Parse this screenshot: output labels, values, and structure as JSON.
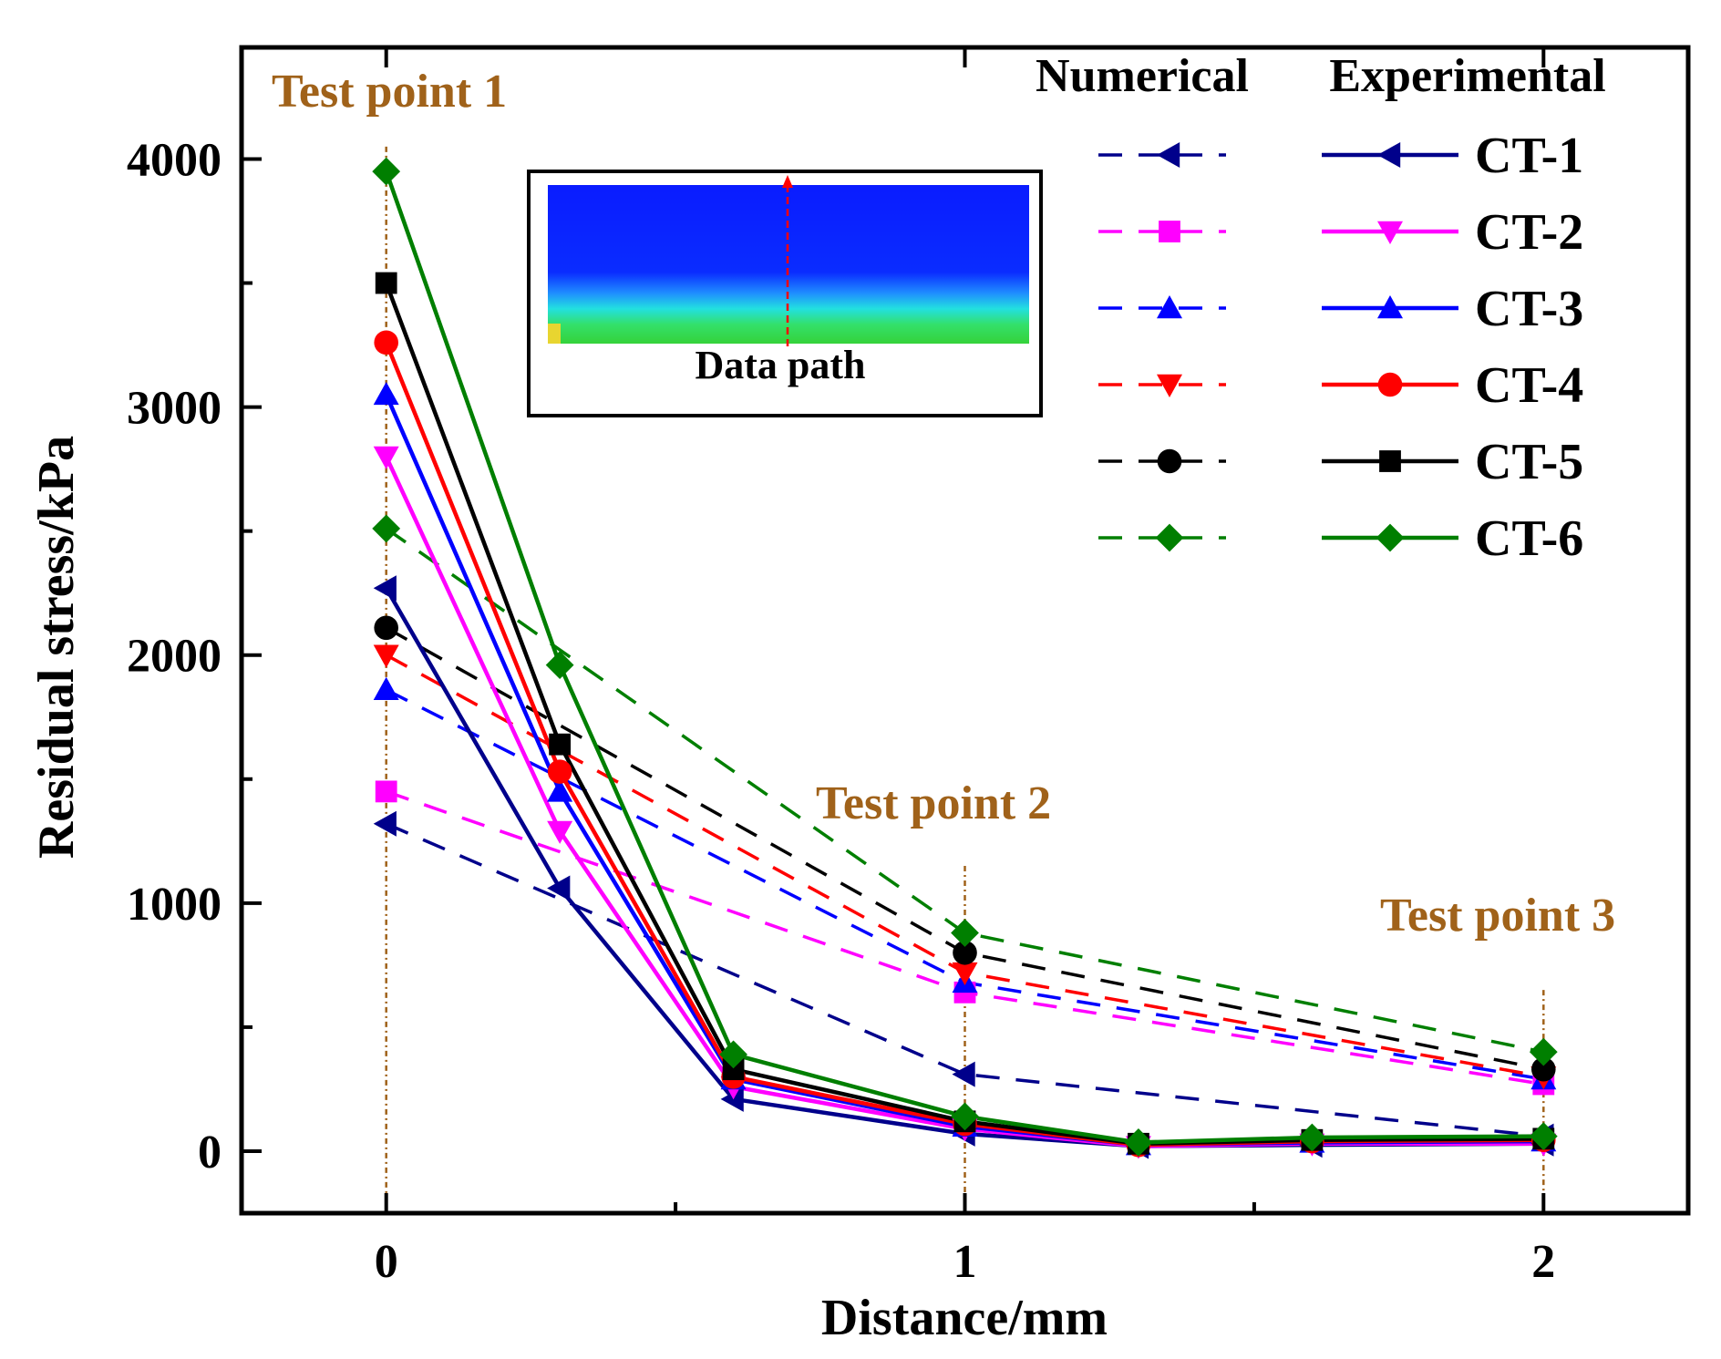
{
  "chart_data": {
    "type": "line",
    "title": "",
    "xlabel": "Distance/mm",
    "ylabel": "Residual stress/kPa",
    "xlim": [
      -0.25,
      2.25
    ],
    "ylim": [
      -250,
      4450
    ],
    "x_ticks": [
      0,
      1,
      2
    ],
    "x_tick_labels": [
      "0",
      "1",
      "2"
    ],
    "x_minor_ticks": [
      0.5,
      1.5
    ],
    "y_ticks": [
      0,
      1000,
      2000,
      3000,
      4000
    ],
    "y_tick_labels": [
      "0",
      "1000",
      "2000",
      "3000",
      "4000"
    ],
    "y_minor_ticks": [
      500,
      1500,
      2500,
      3500
    ],
    "grid": false,
    "legend": {
      "placement": "top-right",
      "numerical_header": "Numerical",
      "experimental_header": "Experimental",
      "labels": [
        "CT-1",
        "CT-2",
        "CT-3",
        "CT-4",
        "CT-5",
        "CT-6"
      ]
    },
    "annotations": [
      {
        "text": "Test point 1",
        "x": 0
      },
      {
        "text": "Test point 2",
        "x": 1
      },
      {
        "text": "Test point 3",
        "x": 2
      }
    ],
    "inset": {
      "label": "Data path"
    },
    "experimental_series": [
      {
        "name": "CT-1",
        "color": "#00008b",
        "marker": "triangle-left",
        "x": [
          0,
          0.3,
          0.6,
          1.0,
          1.3,
          1.6,
          2.0
        ],
        "values": [
          2270,
          1060,
          210,
          70,
          20,
          25,
          30
        ]
      },
      {
        "name": "CT-2",
        "color": "#ff00ff",
        "marker": "triangle-down",
        "x": [
          0,
          0.3,
          0.6,
          1.0,
          1.3,
          1.6,
          2.0
        ],
        "values": [
          2800,
          1290,
          260,
          90,
          20,
          30,
          30
        ]
      },
      {
        "name": "CT-3",
        "color": "#0000ff",
        "marker": "triangle-up",
        "x": [
          0,
          0.3,
          0.6,
          1.0,
          1.3,
          1.6,
          2.0
        ],
        "values": [
          3050,
          1450,
          290,
          100,
          25,
          35,
          40
        ]
      },
      {
        "name": "CT-4",
        "color": "#ff0000",
        "marker": "circle",
        "x": [
          0,
          0.3,
          0.6,
          1.0,
          1.3,
          1.6,
          2.0
        ],
        "values": [
          3260,
          1530,
          300,
          110,
          25,
          40,
          45
        ]
      },
      {
        "name": "CT-5",
        "color": "#000000",
        "marker": "square",
        "x": [
          0,
          0.3,
          0.6,
          1.0,
          1.3,
          1.6,
          2.0
        ],
        "values": [
          3500,
          1640,
          330,
          120,
          30,
          45,
          50
        ]
      },
      {
        "name": "CT-6",
        "color": "#007f00",
        "marker": "diamond",
        "x": [
          0,
          0.3,
          0.6,
          1.0,
          1.3,
          1.6,
          2.0
        ],
        "values": [
          3950,
          1960,
          390,
          140,
          35,
          55,
          60
        ]
      }
    ],
    "numerical_series": [
      {
        "name": "CT-1",
        "color": "#00008b",
        "marker": "triangle-left",
        "x": [
          0,
          1,
          2
        ],
        "values": [
          1320,
          310,
          60
        ]
      },
      {
        "name": "CT-2",
        "color": "#ff00ff",
        "marker": "square",
        "x": [
          0,
          1,
          2
        ],
        "values": [
          1450,
          640,
          270
        ]
      },
      {
        "name": "CT-3",
        "color": "#0000ff",
        "marker": "triangle-up",
        "x": [
          0,
          1,
          2
        ],
        "values": [
          1860,
          680,
          290
        ]
      },
      {
        "name": "CT-4",
        "color": "#ff0000",
        "marker": "triangle-down",
        "x": [
          0,
          1,
          2
        ],
        "values": [
          2000,
          720,
          300
        ]
      },
      {
        "name": "CT-5",
        "color": "#000000",
        "marker": "circle",
        "x": [
          0,
          1,
          2
        ],
        "values": [
          2110,
          800,
          330
        ]
      },
      {
        "name": "CT-6",
        "color": "#007f00",
        "marker": "diamond",
        "x": [
          0,
          1,
          2
        ],
        "values": [
          2510,
          880,
          400
        ]
      }
    ]
  }
}
